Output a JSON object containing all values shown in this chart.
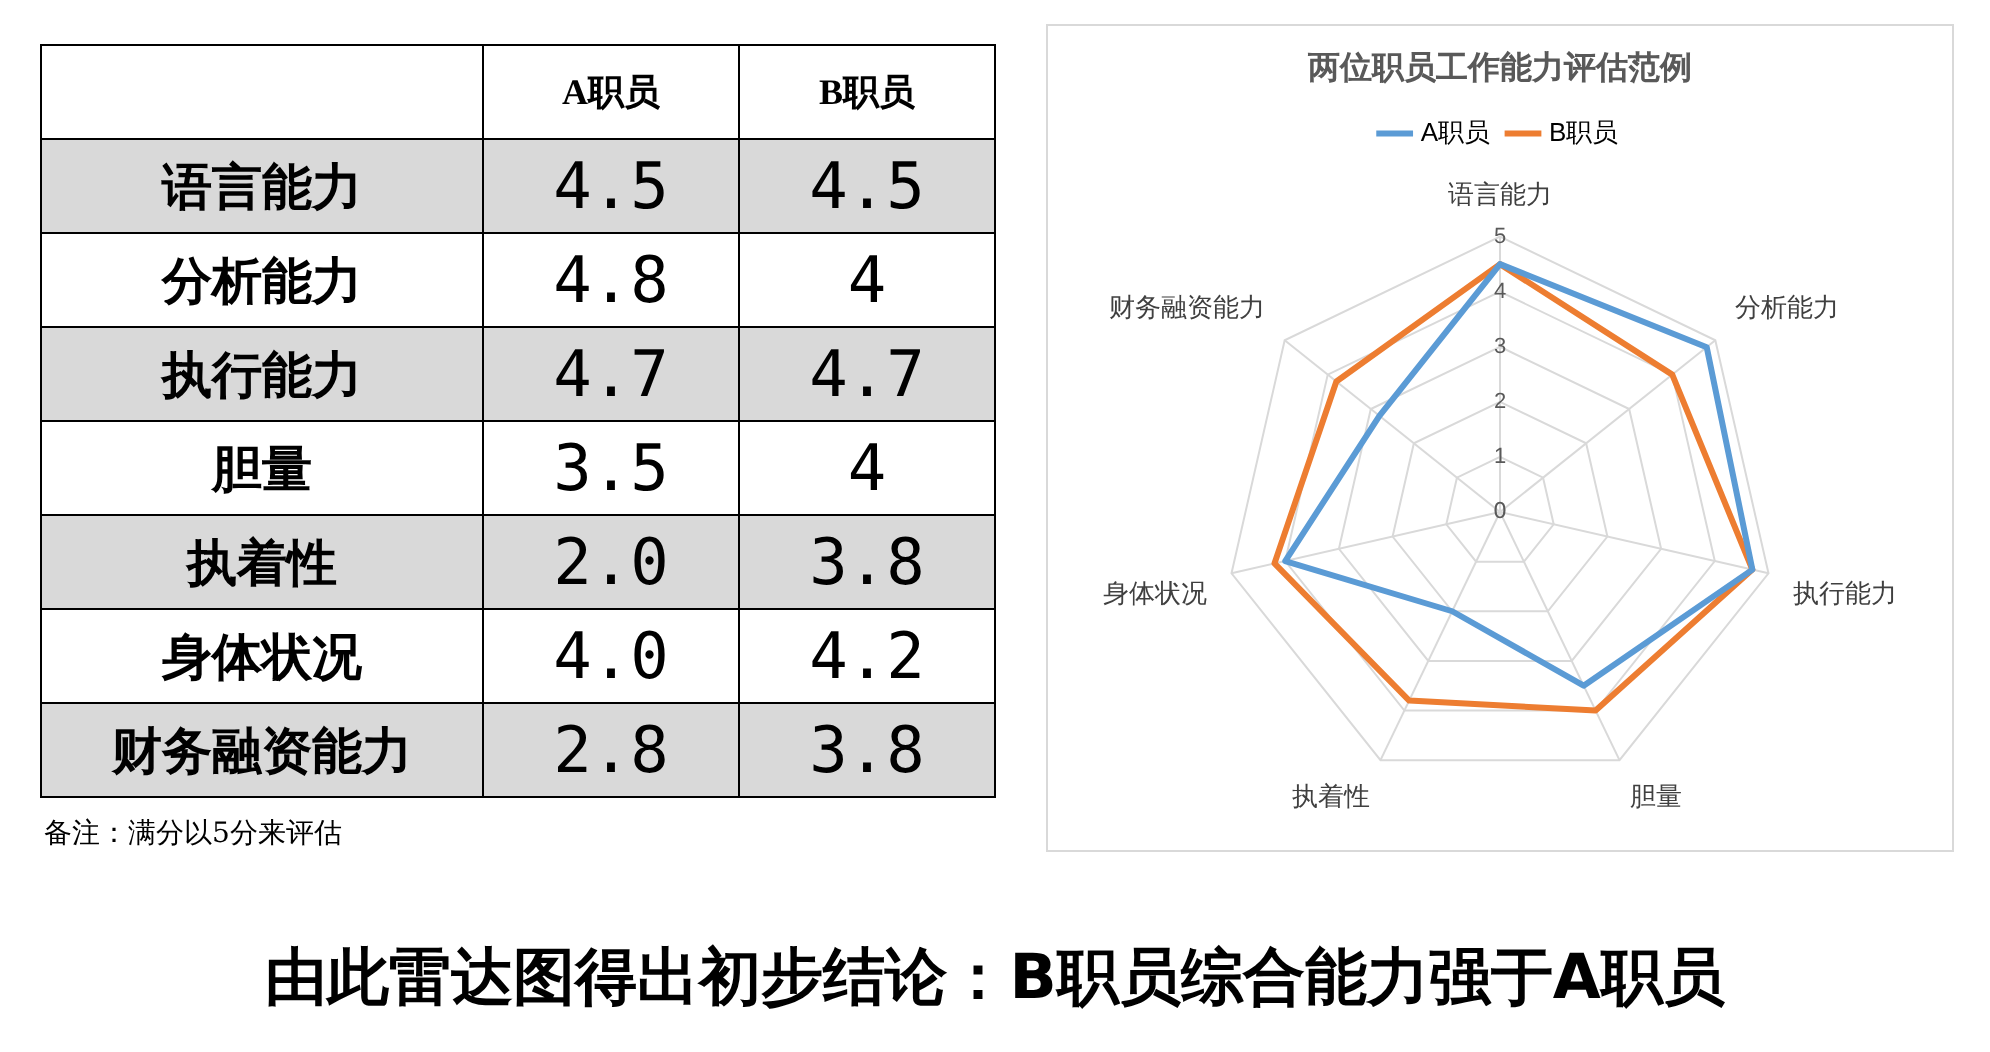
{
  "chart_data": [
    {
      "type": "other",
      "categories": [
        "语言能力",
        "分析能力",
        "执行能力",
        "胆量",
        "执着性",
        "身体状况",
        "财务融资能力"
      ],
      "series": [
        {
          "name": "A职员",
          "values": [
            4.5,
            4.8,
            4.7,
            3.5,
            2.0,
            4.0,
            2.8
          ],
          "value_labels": [
            "4.5",
            "4.8",
            "4.7",
            "3.5",
            "2.0",
            "4.0",
            "2.8"
          ]
        },
        {
          "name": "B职员",
          "values": [
            4.5,
            4,
            4.7,
            4,
            3.8,
            4.2,
            3.8
          ],
          "value_labels": [
            "4.5",
            "4",
            "4.7",
            "4",
            "3.8",
            "4.2",
            "3.8"
          ]
        }
      ],
      "annotations": [
        "备注：满分以5分来评估"
      ]
    },
    {
      "type": "radar",
      "title": "两位职员工作能力评估范例",
      "categories": [
        "语言能力",
        "分析能力",
        "执行能力",
        "胆量",
        "执着性",
        "身体状况",
        "财务融资能力"
      ],
      "series": [
        {
          "name": "A职员",
          "color": "#5b9bd5",
          "values": [
            4.5,
            4.8,
            4.7,
            3.5,
            2.0,
            4.0,
            2.8
          ]
        },
        {
          "name": "B职员",
          "color": "#ed7d31",
          "values": [
            4.5,
            4,
            4.7,
            4,
            3.8,
            4.2,
            3.8
          ]
        }
      ],
      "ylim": [
        0,
        5
      ],
      "yticks": [
        0,
        1,
        2,
        3,
        4,
        5
      ],
      "grid": true,
      "legend": "top",
      "marker": "none",
      "annotations": [
        "由此雷达图得出初步结论：B职员综合能力强于A职员"
      ]
    }
  ]
}
